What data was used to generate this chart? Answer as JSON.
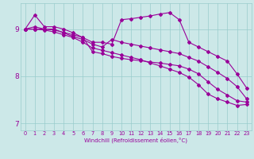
{
  "background_color": "#cce8e8",
  "line_color": "#990099",
  "grid_color": "#99cccc",
  "xlabel": "Windchill (Refroidissement éolien,°C)",
  "ylabel_ticks": [
    7,
    8,
    9
  ],
  "xtick_labels": [
    "0",
    "1",
    "2",
    "3",
    "4",
    "5",
    "6",
    "7",
    "8",
    "9",
    "10",
    "11",
    "12",
    "13",
    "14",
    "15",
    "16",
    "17",
    "18",
    "19",
    "20",
    "21",
    "22",
    "23"
  ],
  "series": [
    [
      9.0,
      9.3,
      9.05,
      9.05,
      9.0,
      8.92,
      8.82,
      8.72,
      8.72,
      8.68,
      9.2,
      9.22,
      9.25,
      9.28,
      9.32,
      9.35,
      9.2,
      8.72,
      8.62,
      8.52,
      8.42,
      8.32,
      8.05,
      7.75
    ],
    [
      9.0,
      9.05,
      9.0,
      9.0,
      8.92,
      8.84,
      8.78,
      8.68,
      8.62,
      8.78,
      8.72,
      8.68,
      8.64,
      8.6,
      8.56,
      8.52,
      8.48,
      8.4,
      8.32,
      8.2,
      8.08,
      7.95,
      7.78,
      7.52
    ],
    [
      9.0,
      9.0,
      9.0,
      8.98,
      8.93,
      8.88,
      8.82,
      8.52,
      8.48,
      8.42,
      8.38,
      8.35,
      8.33,
      8.3,
      8.28,
      8.25,
      8.22,
      8.15,
      8.05,
      7.88,
      7.72,
      7.6,
      7.48,
      7.45
    ],
    [
      9.0,
      9.0,
      8.98,
      8.94,
      8.88,
      8.82,
      8.72,
      8.6,
      8.55,
      8.5,
      8.45,
      8.4,
      8.35,
      8.28,
      8.22,
      8.15,
      8.08,
      7.98,
      7.82,
      7.62,
      7.52,
      7.45,
      7.38,
      7.4
    ]
  ],
  "ylim": [
    6.85,
    9.55
  ],
  "xlim": [
    -0.5,
    23.5
  ]
}
